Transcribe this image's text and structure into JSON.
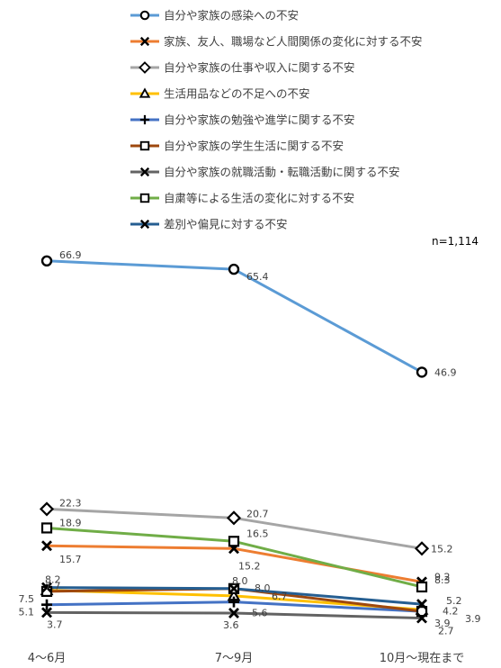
{
  "chart_data": {
    "type": "line",
    "categories": [
      "4～6月",
      "7～9月",
      "10月～現在まで"
    ],
    "note": "n=1,114",
    "series": [
      {
        "name": "自分や家族の感染への不安",
        "values": [
          66.9,
          65.4,
          46.9
        ],
        "color": "#5B9BD5",
        "marker": "circle"
      },
      {
        "name": "家族、友人、職場など人間関係の変化に対する不安",
        "values": [
          15.7,
          15.2,
          9.2
        ],
        "color": "#ED7D31",
        "marker": "x"
      },
      {
        "name": "自分や家族の仕事や収入に関する不安",
        "values": [
          22.3,
          20.7,
          15.2
        ],
        "color": "#A5A5A5",
        "marker": "diamond"
      },
      {
        "name": "生活用品などの不足への不安",
        "values": [
          7.7,
          6.7,
          4.2
        ],
        "color": "#FFC000",
        "marker": "triangle"
      },
      {
        "name": "自分や家族の勉強や進学に関する不安",
        "values": [
          5.1,
          5.6,
          3.9
        ],
        "color": "#4472C4",
        "marker": "plus"
      },
      {
        "name": "自分や家族の学生生活に関する不安",
        "values": [
          7.5,
          8.0,
          3.9
        ],
        "color": "#9E480E",
        "marker": "square"
      },
      {
        "name": "自分や家族の就職活動・転職活動に関する不安",
        "values": [
          3.7,
          3.6,
          2.7
        ],
        "color": "#636363",
        "marker": "x"
      },
      {
        "name": "自粛等による生活の変化に対する不安",
        "values": [
          18.9,
          16.5,
          8.3
        ],
        "color": "#70AD47",
        "marker": "square"
      },
      {
        "name": "差別や偏見に対する不安",
        "values": [
          8.2,
          8.0,
          5.2
        ],
        "color": "#255E91",
        "marker": "x"
      }
    ]
  }
}
